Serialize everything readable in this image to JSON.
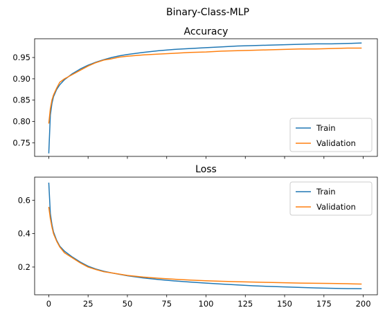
{
  "figure": {
    "title": "Binary-Class-MLP"
  },
  "colors": {
    "train": "#1f77b4",
    "validation": "#ff7f0e"
  },
  "chart_data": [
    {
      "type": "line",
      "title": "Accuracy",
      "xlabel": "",
      "ylabel": "",
      "xlim": [
        -9,
        209
      ],
      "ylim": [
        0.718,
        0.994
      ],
      "yticks": [
        0.75,
        0.8,
        0.85,
        0.9,
        0.95
      ],
      "ytick_labels": [
        "0.75",
        "0.80",
        "0.85",
        "0.90",
        "0.95"
      ],
      "xticks": [
        0,
        25,
        50,
        75,
        100,
        125,
        150,
        175,
        200
      ],
      "xtick_labels_shown": false,
      "grid": false,
      "legend": {
        "position": "lower-right",
        "entries": [
          "Train",
          "Validation"
        ]
      },
      "series": [
        {
          "name": "Train",
          "color": "#1f77b4",
          "x": [
            0,
            1,
            2,
            3,
            5,
            7,
            10,
            15,
            20,
            25,
            30,
            35,
            40,
            45,
            50,
            60,
            70,
            80,
            90,
            100,
            110,
            120,
            130,
            140,
            150,
            160,
            170,
            180,
            190,
            199
          ],
          "y": [
            0.725,
            0.815,
            0.842,
            0.858,
            0.875,
            0.886,
            0.898,
            0.912,
            0.923,
            0.932,
            0.939,
            0.945,
            0.95,
            0.954,
            0.957,
            0.962,
            0.966,
            0.969,
            0.971,
            0.973,
            0.975,
            0.977,
            0.978,
            0.979,
            0.98,
            0.981,
            0.982,
            0.982,
            0.983,
            0.984
          ]
        },
        {
          "name": "Validation",
          "color": "#ff7f0e",
          "x": [
            0,
            1,
            2,
            3,
            5,
            7,
            10,
            15,
            20,
            25,
            30,
            35,
            40,
            45,
            50,
            60,
            70,
            80,
            90,
            100,
            110,
            120,
            130,
            140,
            150,
            160,
            170,
            180,
            190,
            199
          ],
          "y": [
            0.795,
            0.83,
            0.85,
            0.862,
            0.878,
            0.892,
            0.9,
            0.91,
            0.92,
            0.93,
            0.938,
            0.944,
            0.947,
            0.951,
            0.953,
            0.956,
            0.958,
            0.96,
            0.962,
            0.963,
            0.965,
            0.966,
            0.967,
            0.968,
            0.969,
            0.97,
            0.97,
            0.971,
            0.972,
            0.972
          ]
        }
      ]
    },
    {
      "type": "line",
      "title": "Loss",
      "xlabel": "",
      "ylabel": "",
      "xlim": [
        -9,
        209
      ],
      "ylim": [
        0.034,
        0.738
      ],
      "yticks": [
        0.2,
        0.4,
        0.6
      ],
      "ytick_labels": [
        "0.2",
        "0.4",
        "0.6"
      ],
      "xticks": [
        0,
        25,
        50,
        75,
        100,
        125,
        150,
        175,
        200
      ],
      "xtick_labels": [
        "0",
        "25",
        "50",
        "75",
        "100",
        "125",
        "150",
        "175",
        "200"
      ],
      "grid": false,
      "legend": {
        "position": "upper-right",
        "entries": [
          "Train",
          "Validation"
        ]
      },
      "series": [
        {
          "name": "Train",
          "color": "#1f77b4",
          "x": [
            0,
            1,
            2,
            3,
            5,
            7,
            10,
            15,
            20,
            25,
            30,
            35,
            40,
            50,
            60,
            70,
            80,
            90,
            100,
            110,
            120,
            130,
            140,
            150,
            160,
            170,
            180,
            190,
            199
          ],
          "y": [
            0.705,
            0.52,
            0.455,
            0.41,
            0.36,
            0.325,
            0.295,
            0.26,
            0.23,
            0.205,
            0.188,
            0.175,
            0.165,
            0.148,
            0.135,
            0.125,
            0.117,
            0.11,
            0.104,
            0.098,
            0.093,
            0.088,
            0.084,
            0.081,
            0.078,
            0.075,
            0.073,
            0.071,
            0.07
          ]
        },
        {
          "name": "Validation",
          "color": "#ff7f0e",
          "x": [
            0,
            1,
            2,
            3,
            5,
            7,
            10,
            15,
            20,
            25,
            30,
            35,
            40,
            50,
            60,
            70,
            80,
            90,
            100,
            110,
            120,
            130,
            140,
            150,
            160,
            170,
            180,
            190,
            199
          ],
          "y": [
            0.56,
            0.49,
            0.44,
            0.4,
            0.355,
            0.32,
            0.285,
            0.255,
            0.225,
            0.2,
            0.185,
            0.172,
            0.165,
            0.15,
            0.14,
            0.133,
            0.127,
            0.122,
            0.118,
            0.115,
            0.112,
            0.11,
            0.108,
            0.106,
            0.104,
            0.103,
            0.102,
            0.1,
            0.098
          ]
        }
      ]
    }
  ]
}
